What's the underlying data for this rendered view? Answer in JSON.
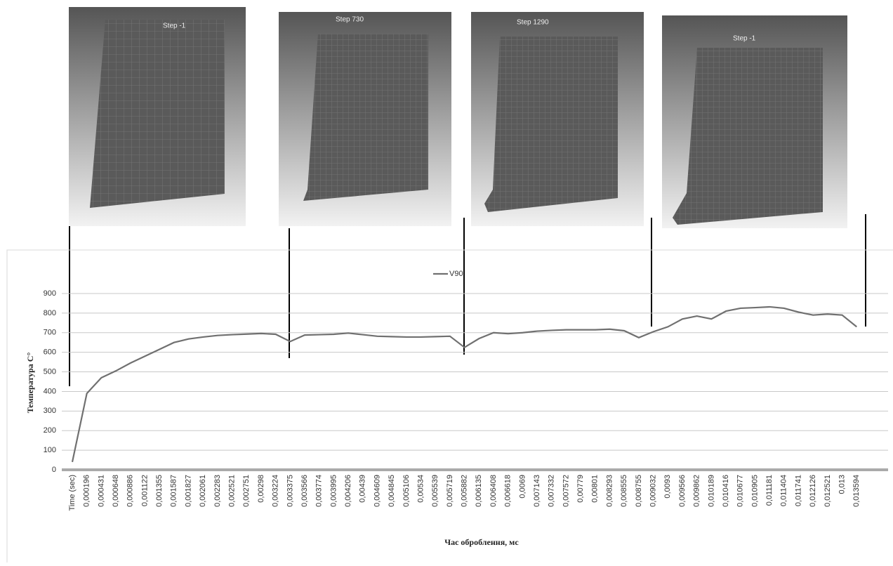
{
  "panels": [
    {
      "label": "Step -1"
    },
    {
      "label": "Step 730"
    },
    {
      "label": "Step 1290"
    },
    {
      "label": "Step -1"
    }
  ],
  "chart_data": {
    "type": "line",
    "x_label": "Час оброблення, мс",
    "y_label": "Температура С°",
    "categories": [
      "Time (sec)",
      "0,000196",
      "0,000431",
      "0,000648",
      "0,000886",
      "0,001122",
      "0,001355",
      "0,001587",
      "0,001827",
      "0,002061",
      "0,002283",
      "0,002521",
      "0,002751",
      "0,00298",
      "0,003224",
      "0,003375",
      "0,003566",
      "0,003774",
      "0,003995",
      "0,004206",
      "0,00439",
      "0,004609",
      "0,004845",
      "0,005106",
      "0,00534",
      "0,005539",
      "0,005719",
      "0,005882",
      "0,006135",
      "0,006408",
      "0,006618",
      "0,0069",
      "0,007143",
      "0,007332",
      "0,007572",
      "0,00779",
      "0,00801",
      "0,008293",
      "0,008555",
      "0,008755",
      "0,009032",
      "0,0093",
      "0,009566",
      "0,009862",
      "0,010189",
      "0,010416",
      "0,010677",
      "0,010905",
      "0,011181",
      "0,011404",
      "0,011741",
      "0,012126",
      "0,012521",
      "0,013",
      "0,013594"
    ],
    "series": [
      {
        "name": "V90",
        "color": "#707070",
        "values": [
          40,
          390,
          470,
          505,
          545,
          580,
          615,
          650,
          668,
          678,
          686,
          690,
          693,
          696,
          692,
          655,
          688,
          690,
          692,
          698,
          690,
          682,
          680,
          678,
          678,
          680,
          682,
          625,
          670,
          700,
          695,
          700,
          708,
          712,
          715,
          715,
          715,
          718,
          710,
          675,
          705,
          730,
          770,
          785,
          770,
          810,
          825,
          828,
          832,
          825,
          805,
          790,
          795,
          790,
          730
        ]
      }
    ],
    "ylim": [
      0,
      900
    ],
    "yticks": [
      0,
      100,
      200,
      300,
      400,
      500,
      600,
      700,
      800,
      900
    ],
    "grid": true,
    "legend": "top"
  }
}
